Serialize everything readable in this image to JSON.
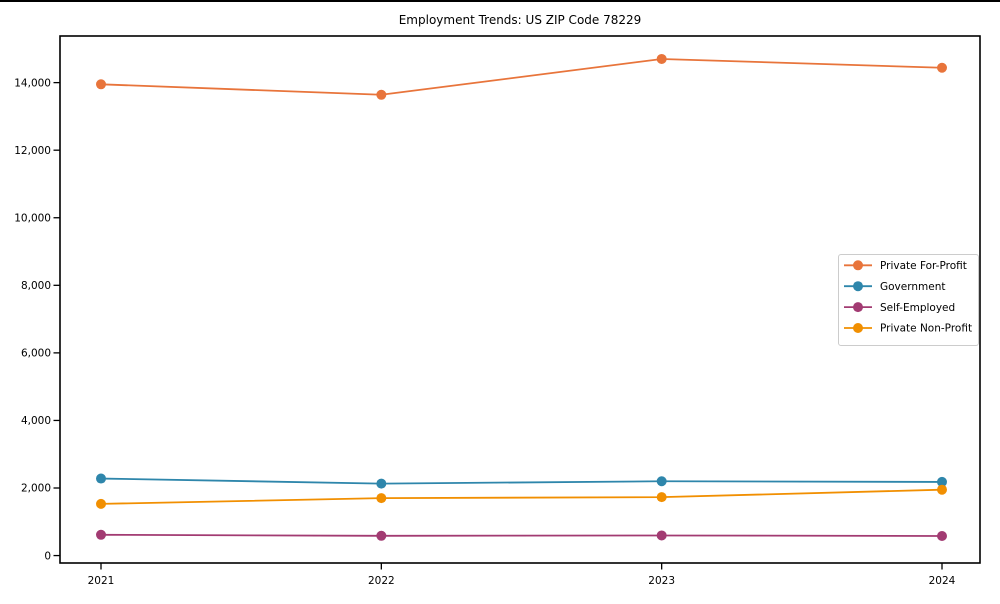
{
  "figure": {
    "title": "Employment Trends: US ZIP Code 78229"
  },
  "chart_data": {
    "type": "line",
    "title": "Employment Trends: US ZIP Code 78229",
    "categories": [
      "2021",
      "2022",
      "2023",
      "2024"
    ],
    "series": [
      {
        "name": "Private For-Profit",
        "color": "#E8743B",
        "values": [
          13950,
          13640,
          14700,
          14440
        ]
      },
      {
        "name": "Government",
        "color": "#2E86AB",
        "values": [
          2280,
          2130,
          2200,
          2180
        ]
      },
      {
        "name": "Self-Employed",
        "color": "#A23B72",
        "values": [
          615,
          585,
          595,
          580
        ]
      },
      {
        "name": "Private Non-Profit",
        "color": "#F18F01",
        "values": [
          1530,
          1700,
          1730,
          1950
        ]
      }
    ],
    "xlabel": "",
    "ylabel": "",
    "ylim": [
      -220,
      15380
    ],
    "yticks": [
      0,
      2000,
      4000,
      6000,
      8000,
      10000,
      12000,
      14000
    ],
    "ytick_labels": [
      "0",
      "2,000",
      "4,000",
      "6,000",
      "8,000",
      "10,000",
      "12,000",
      "14,000"
    ],
    "grid": false,
    "legend_position": "right-middle",
    "colors": {
      "spine": "#000000",
      "legend_border": "#cccccc",
      "background": "#ffffff"
    }
  }
}
